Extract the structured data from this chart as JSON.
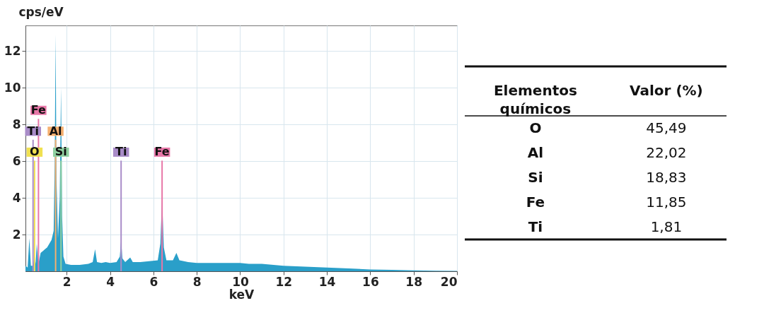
{
  "chart_data": [
    {
      "type": "area",
      "xlabel": "keV",
      "ylabel": "cps/eV",
      "color": "#2a9fc9",
      "marker": "none",
      "grid": true,
      "x": [
        0.1,
        0.2,
        0.28,
        0.35,
        0.45,
        0.52,
        0.57,
        0.62,
        0.7,
        0.8,
        0.9,
        1.0,
        1.1,
        1.2,
        1.3,
        1.4,
        1.45,
        1.49,
        1.53,
        1.6,
        1.68,
        1.74,
        1.79,
        1.85,
        1.95,
        2.2,
        2.6,
        3.0,
        3.2,
        3.31,
        3.4,
        3.6,
        3.8,
        4.0,
        4.3,
        4.45,
        4.51,
        4.57,
        4.7,
        4.93,
        5.05,
        5.4,
        5.8,
        6.2,
        6.32,
        6.4,
        6.48,
        6.6,
        6.9,
        7.06,
        7.2,
        7.6,
        8,
        9,
        10,
        10.4,
        11,
        12,
        13,
        14,
        15,
        16,
        17,
        18,
        19,
        20
      ],
      "values": [
        0.3,
        0.2,
        1.8,
        0.3,
        0.3,
        0.9,
        0.4,
        1.5,
        0.4,
        1.0,
        1.1,
        1.2,
        1.3,
        1.5,
        1.7,
        2.2,
        6,
        12.9,
        5,
        1.8,
        4,
        10.0,
        3,
        0.8,
        0.4,
        0.35,
        0.35,
        0.4,
        0.5,
        1.2,
        0.5,
        0.45,
        0.5,
        0.45,
        0.5,
        0.8,
        1.7,
        0.7,
        0.5,
        0.75,
        0.5,
        0.5,
        0.55,
        0.6,
        1.5,
        4.0,
        1.3,
        0.6,
        0.6,
        1.0,
        0.6,
        0.5,
        0.45,
        0.45,
        0.45,
        0.4,
        0.4,
        0.3,
        0.25,
        0.2,
        0.15,
        0.1,
        0.08,
        0.05,
        0.03,
        0.02
      ],
      "xlim": [
        0.1,
        20
      ],
      "ylim": [
        0,
        13.4
      ],
      "xticks": [
        2,
        4,
        6,
        8,
        10,
        12,
        14,
        16,
        18,
        20
      ],
      "yticks": [
        2,
        4,
        6,
        8,
        10,
        12
      ],
      "ref_lines": [
        {
          "axis": "x",
          "value": 0.52,
          "label": "O",
          "color": "#f0e050"
        },
        {
          "axis": "x",
          "value": 1.74,
          "label": "Si",
          "color": "#8fd0a0"
        },
        {
          "axis": "x",
          "value": 4.51,
          "label": "Ti",
          "color": "#a98cc8"
        },
        {
          "axis": "x",
          "value": 6.4,
          "label": "Fe",
          "color": "#e877a8"
        },
        {
          "axis": "x",
          "value": 1.49,
          "label": "Al",
          "color": "#f5b070"
        },
        {
          "axis": "x",
          "value": 0.45,
          "label": "Ti",
          "color": "#a98cc8"
        },
        {
          "axis": "x",
          "value": 0.7,
          "label": "Fe",
          "color": "#e877a8"
        }
      ]
    },
    {
      "type": "other",
      "xlabel": "Elementos químicos",
      "ylabel": "Valor (%)",
      "categories": [
        "O",
        "Al",
        "Si",
        "Fe",
        "Ti"
      ],
      "values": [
        45.49,
        22.02,
        18.83,
        11.85,
        1.81
      ],
      "value_labels": [
        "45,49",
        "22,02",
        "18,83",
        "11,85",
        "1,81"
      ]
    }
  ]
}
